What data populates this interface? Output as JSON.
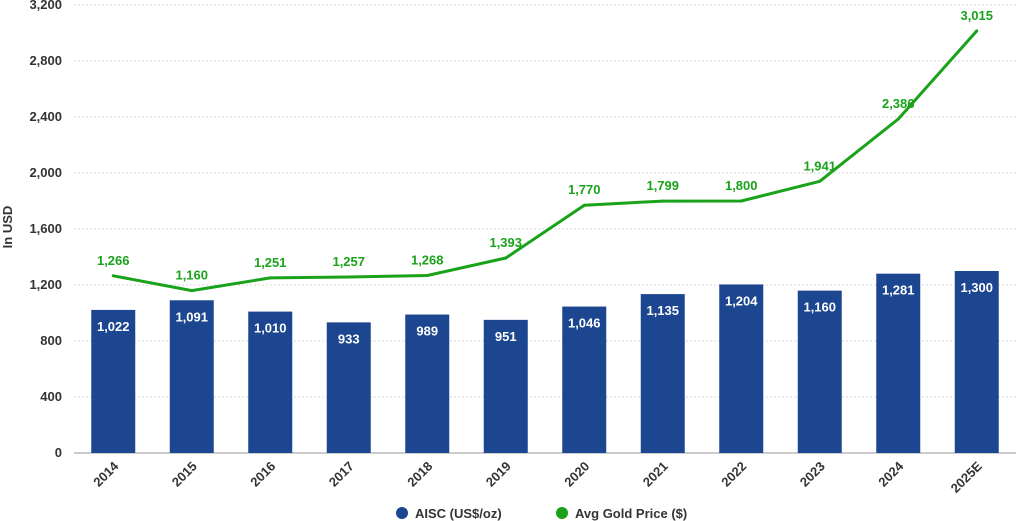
{
  "chart_data": {
    "type": "bar",
    "categories": [
      "2014",
      "2015",
      "2016",
      "2017",
      "2018",
      "2019",
      "2020",
      "2021",
      "2022",
      "2023",
      "2024",
      "2025E"
    ],
    "series": [
      {
        "name": "AISC (US$/oz)",
        "type": "bar",
        "color": "#1c4690",
        "values": [
          1022,
          1091,
          1010,
          933,
          989,
          951,
          1046,
          1135,
          1204,
          1160,
          1281,
          1300
        ],
        "labels": [
          "1,022",
          "1,091",
          "1,010",
          "933",
          "989",
          "951",
          "1,046",
          "1,135",
          "1,204",
          "1,160",
          "1,281",
          "1,300"
        ]
      },
      {
        "name": "Avg Gold Price ($)",
        "type": "line",
        "color": "#1aa31a",
        "values": [
          1266,
          1160,
          1251,
          1257,
          1268,
          1393,
          1770,
          1799,
          1800,
          1941,
          2386,
          3015
        ],
        "labels": [
          "1,266",
          "1,160",
          "1,251",
          "1,257",
          "1,268",
          "1,393",
          "1,770",
          "1,799",
          "1,800",
          "1,941",
          "2,386",
          "3,015"
        ]
      }
    ],
    "ylabel": "In USD",
    "ylim": [
      0,
      3200
    ],
    "yticks": [
      0,
      400,
      800,
      1200,
      1600,
      2000,
      2400,
      2800,
      3200
    ],
    "ytick_labels": [
      "0",
      "400",
      "800",
      "1,200",
      "1,600",
      "2,000",
      "2,400",
      "2,800",
      "3,200"
    ],
    "grid": true,
    "legend": "bottom-center"
  }
}
